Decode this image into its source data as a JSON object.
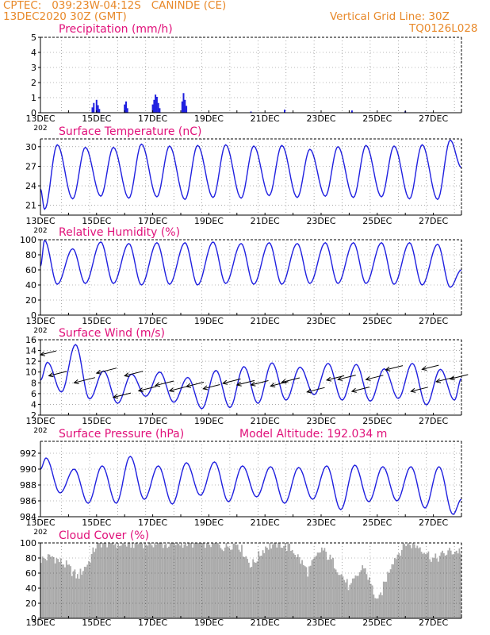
{
  "header": {
    "line1": "CPTEC:   039:23W-04:12S   CANINDE (CE)",
    "line2": "13DEC2020 30Z (GMT)",
    "grid_note": "Vertical Grid Line: 30Z",
    "code": "TQ0126L028"
  },
  "colors": {
    "header": "#e8892a",
    "title": "#e0117a",
    "series": "#2020e0",
    "wind_arrow": "#000000",
    "cloud_fill": "#aaaaaa"
  },
  "x_axis": {
    "start": "13DEC2020 06Z",
    "end": "28DEC2020 06Z",
    "tick_labels": [
      "13DEC",
      "15DEC",
      "17DEC",
      "19DEC",
      "21DEC",
      "23DEC",
      "25DEC",
      "27DEC"
    ],
    "year_fragment": "202"
  },
  "chart_data": [
    {
      "type": "bar",
      "title": "Precipitation (mm/h)",
      "ylim": [
        0,
        5
      ],
      "yticks": [
        0,
        1,
        2,
        3,
        4,
        5
      ],
      "grid": true,
      "points": [
        [
          1.85,
          0.35
        ],
        [
          1.9,
          0.65
        ],
        [
          2.0,
          0.85
        ],
        [
          2.05,
          0.5
        ],
        [
          2.1,
          0.25
        ],
        [
          3.0,
          0.55
        ],
        [
          3.05,
          0.75
        ],
        [
          3.1,
          0.3
        ],
        [
          4.0,
          0.55
        ],
        [
          4.05,
          0.85
        ],
        [
          4.1,
          1.2
        ],
        [
          4.15,
          1.05
        ],
        [
          4.2,
          0.65
        ],
        [
          4.25,
          0.3
        ],
        [
          5.05,
          0.75
        ],
        [
          5.1,
          1.3
        ],
        [
          5.15,
          0.85
        ],
        [
          5.2,
          0.45
        ],
        [
          7.5,
          0.08
        ],
        [
          8.7,
          0.2
        ],
        [
          11.1,
          0.15
        ],
        [
          13.0,
          0.1
        ]
      ]
    },
    {
      "type": "line",
      "title": "Surface Temperature (nC)",
      "ylim": [
        19.5,
        31.2
      ],
      "yticks": [
        21,
        24,
        27,
        30
      ],
      "grid": true,
      "daily_min": [
        20.4,
        22.0,
        22.4,
        22.1,
        22.3,
        21.9,
        22.2,
        22.1,
        22.5,
        22.2,
        22.4,
        22.2,
        22.3,
        22.0,
        21.9
      ],
      "daily_max": [
        30.3,
        29.9,
        29.9,
        30.4,
        30.1,
        30.2,
        30.3,
        30.1,
        30.2,
        29.6,
        30.0,
        30.2,
        30.1,
        30.3,
        31.0
      ],
      "start_value": 23.5,
      "end_value": 26.8
    },
    {
      "type": "line",
      "title": "Relative Humidity (%)",
      "ylim": [
        0,
        100
      ],
      "yticks": [
        0,
        20,
        40,
        60,
        80,
        100
      ],
      "grid": true,
      "daily_max": [
        99,
        88,
        97,
        95,
        96,
        96,
        97,
        95,
        96,
        95,
        96,
        96,
        96,
        96,
        94
      ],
      "daily_min": [
        41,
        42,
        42,
        40,
        41,
        40,
        42,
        41,
        41,
        42,
        42,
        42,
        41,
        40,
        37
      ],
      "start_value": 65,
      "end_value": 60
    },
    {
      "type": "line",
      "title": "Surface Wind (m/s)",
      "ylim": [
        2,
        16
      ],
      "yticks": [
        2,
        4,
        6,
        8,
        10,
        12,
        14,
        16
      ],
      "grid": true,
      "daily_peak": [
        11.8,
        15.1,
        10.2,
        9.6,
        10.0,
        9.0,
        10.3,
        11.0,
        11.7,
        10.9,
        11.6,
        11.4,
        10.6,
        11.6,
        10.5
      ],
      "daily_trough": [
        6.3,
        5.0,
        4.2,
        5.5,
        4.4,
        3.2,
        3.4,
        4.2,
        4.8,
        5.8,
        4.8,
        4.6,
        5.1,
        3.9,
        4.8
      ],
      "arrows": [
        [
          0.0,
          13.2,
          9.0
        ],
        [
          0.3,
          9.3,
          10.2
        ],
        [
          1.2,
          8.0,
          12.0
        ],
        [
          2.0,
          9.8,
          11.5
        ],
        [
          2.6,
          5.3,
          10.0
        ],
        [
          3.0,
          9.3,
          10.5
        ],
        [
          3.5,
          6.5,
          10.2
        ],
        [
          4.1,
          7.5,
          10.4
        ],
        [
          4.6,
          6.5,
          10.4
        ],
        [
          5.2,
          7.3,
          10.0
        ],
        [
          5.8,
          6.9,
          9.6
        ],
        [
          6.5,
          7.9,
          10.2
        ],
        [
          7.0,
          7.6,
          10.1
        ],
        [
          7.5,
          7.6,
          10.0
        ],
        [
          8.2,
          7.4,
          10.1
        ],
        [
          8.6,
          8.1,
          10.2
        ],
        [
          9.5,
          6.3,
          10.1
        ],
        [
          10.2,
          8.5,
          10.0
        ],
        [
          10.6,
          8.6,
          10.2
        ],
        [
          11.1,
          6.4,
          10.0
        ],
        [
          11.6,
          8.6,
          9.9
        ],
        [
          12.3,
          10.4,
          9.8
        ],
        [
          13.2,
          6.4,
          9.8
        ],
        [
          13.6,
          10.5,
          9.5
        ],
        [
          14.1,
          8.2,
          10.3
        ],
        [
          14.6,
          8.7,
          10.2
        ]
      ]
    },
    {
      "type": "line",
      "title": "Surface Pressure (hPa)",
      "annotation": "Model Altitude: 192.034 m",
      "ylim": [
        984,
        993.5
      ],
      "yticks": [
        984,
        986,
        988,
        990,
        992
      ],
      "grid": true,
      "daily_high": [
        991.4,
        990.0,
        990.4,
        991.6,
        990.4,
        990.8,
        990.9,
        990.4,
        990.3,
        990.2,
        990.4,
        990.5,
        990.3,
        990.3,
        990.3
      ],
      "daily_low": [
        987.0,
        985.7,
        985.7,
        986.2,
        985.6,
        986.7,
        985.9,
        986.5,
        985.7,
        986.2,
        984.9,
        985.9,
        986.0,
        985.1,
        984.3
      ],
      "start_value": 990.0,
      "end_value": 986.2
    },
    {
      "type": "area",
      "title": "Cloud Cover (%)",
      "ylim": [
        0,
        100
      ],
      "yticks": [
        0,
        20,
        40,
        60,
        80,
        100
      ],
      "grid": true,
      "points": [
        [
          0.0,
          78
        ],
        [
          0.4,
          82
        ],
        [
          0.9,
          70
        ],
        [
          1.3,
          55
        ],
        [
          1.7,
          75
        ],
        [
          2.0,
          100
        ],
        [
          2.5,
          100
        ],
        [
          3.0,
          98
        ],
        [
          3.5,
          100
        ],
        [
          4.0,
          100
        ],
        [
          4.5,
          98
        ],
        [
          5.0,
          100
        ],
        [
          5.5,
          100
        ],
        [
          6.0,
          100
        ],
        [
          6.5,
          95
        ],
        [
          7.0,
          100
        ],
        [
          7.5,
          70
        ],
        [
          8.0,
          95
        ],
        [
          8.5,
          100
        ],
        [
          9.0,
          90
        ],
        [
          9.5,
          62
        ],
        [
          10.0,
          92
        ],
        [
          10.5,
          70
        ],
        [
          11.0,
          40
        ],
        [
          11.5,
          70
        ],
        [
          12.0,
          20
        ],
        [
          12.5,
          75
        ],
        [
          13.0,
          100
        ],
        [
          13.5,
          95
        ],
        [
          14.0,
          78
        ],
        [
          14.5,
          88
        ],
        [
          15.0,
          90
        ]
      ]
    }
  ]
}
